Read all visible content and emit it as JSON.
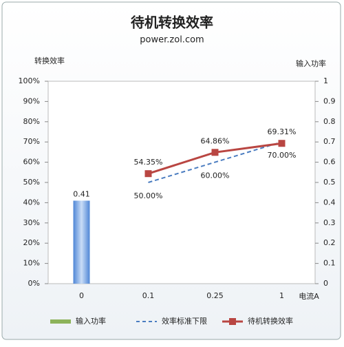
{
  "chart_data": {
    "type": "bar-line",
    "title": "待机转换效率",
    "subtitle": "power.zol.com",
    "y_label": "转换效率",
    "y2_label": "输入功率",
    "x_label": "电流A",
    "categories": [
      "0",
      "0.1",
      "0.25",
      "1"
    ],
    "ylim": [
      0,
      100
    ],
    "yticks": [
      {
        "value": 0,
        "label": "0%"
      },
      {
        "value": 10,
        "label": "10%"
      },
      {
        "value": 20,
        "label": "20%"
      },
      {
        "value": 30,
        "label": "30%"
      },
      {
        "value": 40,
        "label": "40%"
      },
      {
        "value": 50,
        "label": "50%"
      },
      {
        "value": 60,
        "label": "60%"
      },
      {
        "value": 70,
        "label": "70%"
      },
      {
        "value": 80,
        "label": "80%"
      },
      {
        "value": 90,
        "label": "90%"
      },
      {
        "value": 100,
        "label": "100%"
      }
    ],
    "y2lim": [
      0,
      1
    ],
    "y2ticks": [
      0,
      0.1,
      0.2,
      0.3,
      0.4,
      0.5,
      0.6,
      0.7,
      0.8,
      0.9,
      1
    ],
    "series": [
      {
        "name": "输入功率",
        "type": "bar",
        "axis": "y2",
        "color": "#6f9fe0",
        "legend_color": "#8db35a",
        "values": [
          0.41,
          null,
          null,
          null
        ]
      },
      {
        "name": "效率标准下限",
        "type": "dashed-line",
        "color": "#4a7cc0",
        "values": [
          null,
          50,
          60,
          70
        ],
        "value_labels": [
          null,
          "50.00%",
          "60.00%",
          "70.00%"
        ]
      },
      {
        "name": "待机转换效率",
        "type": "line-marker",
        "color": "#b94642",
        "values": [
          null,
          54.35,
          64.86,
          69.31
        ],
        "value_labels": [
          null,
          "54.35%",
          "64.86%",
          "69.31%"
        ]
      }
    ]
  }
}
